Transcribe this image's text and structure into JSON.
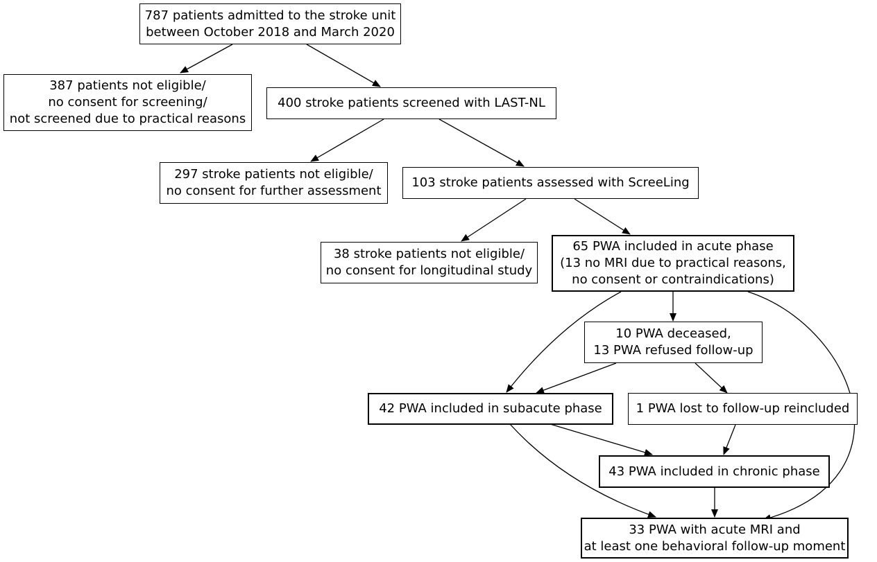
{
  "boxes": {
    "admitted": [
      "787 patients admitted to the stroke unit",
      "between October 2018 and March 2020"
    ],
    "not_eligible_screening": [
      "387 patients not eligible/",
      "no consent for screening/",
      "not screened due to practical reasons"
    ],
    "screened": [
      "400 stroke patients screened with LAST-NL"
    ],
    "not_eligible_assessment": [
      "297 stroke patients not eligible/",
      "no consent for further assessment"
    ],
    "assessed": [
      "103 stroke patients assessed with ScreeLing"
    ],
    "not_eligible_longitudinal": [
      "38 stroke patients not eligible/",
      "no consent for longitudinal study"
    ],
    "acute": [
      "65 PWA included in acute phase",
      "(13 no MRI due to practical reasons,",
      "no consent or contraindications)"
    ],
    "deceased": [
      "10 PWA deceased,",
      "13 PWA refused follow-up"
    ],
    "subacute": [
      "42 PWA included in subacute phase"
    ],
    "lost": [
      "1 PWA lost to follow-up reincluded"
    ],
    "chronic": [
      "43 PWA included in chronic phase"
    ],
    "final": [
      "33 PWA with acute MRI and",
      "at least one behavioral follow-up moment"
    ]
  }
}
